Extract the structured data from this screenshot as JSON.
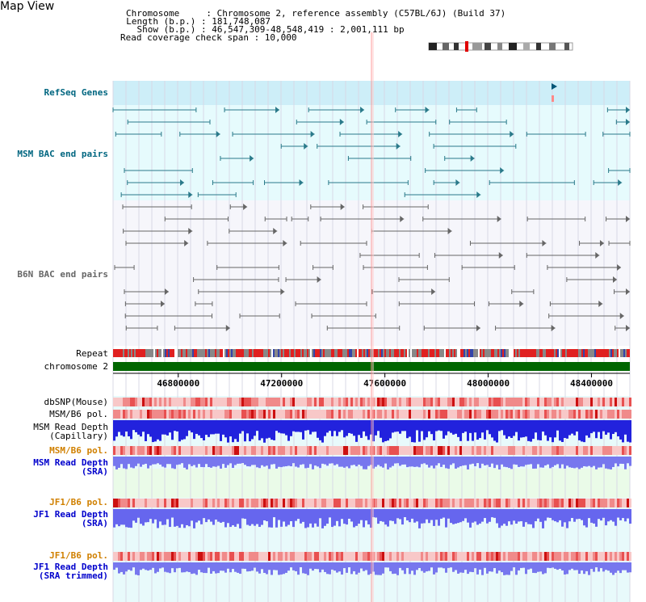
{
  "header": {
    "title": "Map View",
    "info_lines": [
      "Chromosome     : Chromosome 2, reference assembly (C57BL/6J) (Build 37)",
      "  Length (b.p.) : 181,748,087",
      "    Show (b.p.) : 46,547,309-48,548,419 : 2,001,111 bp",
      "Read coverage check span : 10,000"
    ]
  },
  "tracks": {
    "refseq": "RefSeq Genes",
    "msm_bac": "MSM BAC end pairs",
    "b6n_bac": "B6N BAC end pairs",
    "repeat": "Repeat",
    "chromosome": "chromosome 2",
    "dbsnp": "dbSNP(Mouse)",
    "msm_b6_pol_1": "MSM/B6 pol.",
    "msm_depth_cap": "MSM Read Depth\n(Capillary)",
    "msm_b6_pol_2": "MSM/B6 pol.",
    "msm_depth_sra": "MSM Read Depth\n(SRA)",
    "jf1_b6_pol_1": "JF1/B6 pol.",
    "jf1_depth_sra": "JF1 Read Depth\n(SRA)",
    "jf1_b6_pol_2": "JF1/B6 pol.",
    "jf1_depth_trim": "JF1 Read Depth\n(SRA trimmed)"
  },
  "axis": {
    "ticks": [
      "46800000",
      "47200000",
      "47600000",
      "48000000",
      "48400000"
    ],
    "tick_values": [
      46800000,
      47200000,
      47600000,
      48000000,
      48400000
    ],
    "range": [
      46547309,
      48548419
    ]
  },
  "colors": {
    "label_teal": "#006680",
    "label_blue": "#0000cc",
    "label_orange": "#d08000",
    "feature_teal": "#2a7a8a",
    "bac_gray": "#666666",
    "chrom_green": "#006600",
    "repeat_red": "#e02020",
    "depth_blue": "#3333ee",
    "depth_light_blue": "#7777ee",
    "pol_red": "#ee5555"
  }
}
